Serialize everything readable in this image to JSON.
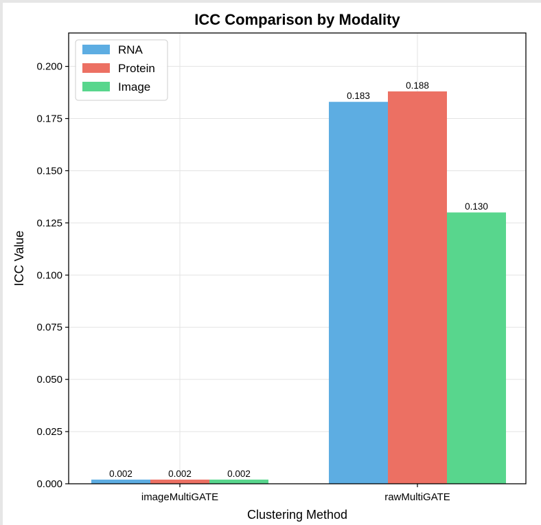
{
  "chart_data": {
    "type": "bar",
    "title": "ICC Comparison by Modality",
    "xlabel": "Clustering Method",
    "ylabel": "ICC Value",
    "categories": [
      "imageMultiGATE",
      "rawMultiGATE"
    ],
    "series": [
      {
        "name": "RNA",
        "values": [
          0.002,
          0.183
        ],
        "labels": [
          "0.002",
          "0.183"
        ],
        "color": "#5dade2"
      },
      {
        "name": "Protein",
        "values": [
          0.002,
          0.188
        ],
        "labels": [
          "0.002",
          "0.188"
        ],
        "color": "#ec7063"
      },
      {
        "name": "Image",
        "values": [
          0.002,
          0.13
        ],
        "labels": [
          "0.002",
          "0.130"
        ],
        "color": "#58d68d"
      }
    ],
    "ylim": [
      0,
      0.216
    ],
    "yticks": [
      0.0,
      0.025,
      0.05,
      0.075,
      0.1,
      0.125,
      0.15,
      0.175,
      0.2
    ],
    "ytick_labels": [
      "0.000",
      "0.025",
      "0.050",
      "0.075",
      "0.100",
      "0.125",
      "0.150",
      "0.175",
      "0.200"
    ],
    "grid": true,
    "legend_position": "top-left"
  }
}
